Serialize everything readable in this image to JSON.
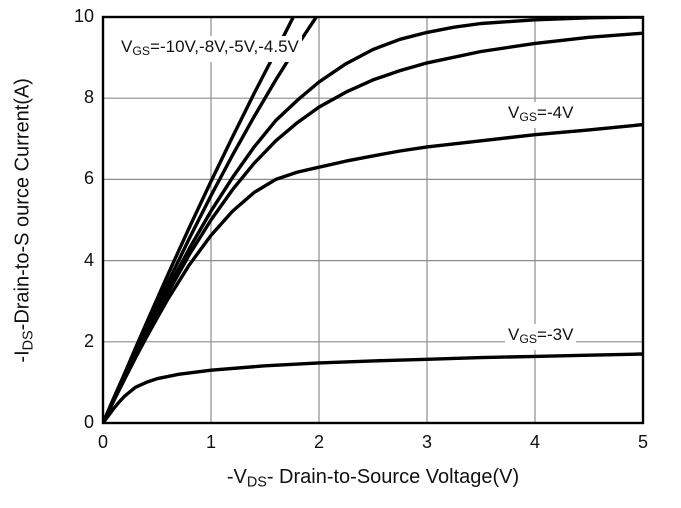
{
  "chart_data": {
    "type": "line",
    "title": "",
    "xlabel": "-VDS- Drain-to-Source Voltage(V)",
    "ylabel": "-IDS-Drain-to-S ource Current(A)",
    "xlim": [
      0,
      5
    ],
    "ylim": [
      0,
      10
    ],
    "x_ticks": [
      0,
      1,
      2,
      3,
      4,
      5
    ],
    "y_ticks": [
      0,
      2,
      4,
      6,
      8,
      10
    ],
    "grid": true,
    "legend": "none",
    "line_color": "#000000",
    "grid_color": "#8c8c8c",
    "series": [
      {
        "name": "VGS=-10V",
        "points": [
          [
            0,
            0
          ],
          [
            0.1,
            0.62
          ],
          [
            0.2,
            1.22
          ],
          [
            0.3,
            1.84
          ],
          [
            0.4,
            2.45
          ],
          [
            0.5,
            3.05
          ],
          [
            0.6,
            3.65
          ],
          [
            0.8,
            4.82
          ],
          [
            1.0,
            5.95
          ],
          [
            1.2,
            7.05
          ],
          [
            1.4,
            8.12
          ],
          [
            1.6,
            9.15
          ],
          [
            1.8,
            10.2
          ],
          [
            1.9,
            10.7
          ]
        ]
      },
      {
        "name": "VGS=-8V",
        "points": [
          [
            0,
            0
          ],
          [
            0.1,
            0.6
          ],
          [
            0.2,
            1.18
          ],
          [
            0.3,
            1.76
          ],
          [
            0.4,
            2.33
          ],
          [
            0.5,
            2.9
          ],
          [
            0.6,
            3.45
          ],
          [
            0.8,
            4.55
          ],
          [
            1.0,
            5.6
          ],
          [
            1.2,
            6.6
          ],
          [
            1.4,
            7.55
          ],
          [
            1.6,
            8.45
          ],
          [
            1.8,
            9.3
          ],
          [
            2.0,
            10.1
          ],
          [
            2.15,
            10.7
          ]
        ]
      },
      {
        "name": "VGS=-5V",
        "points": [
          [
            0,
            0
          ],
          [
            0.1,
            0.58
          ],
          [
            0.2,
            1.14
          ],
          [
            0.3,
            1.7
          ],
          [
            0.4,
            2.24
          ],
          [
            0.5,
            2.78
          ],
          [
            0.6,
            3.3
          ],
          [
            0.8,
            4.3
          ],
          [
            1.0,
            5.22
          ],
          [
            1.2,
            6.05
          ],
          [
            1.4,
            6.8
          ],
          [
            1.6,
            7.45
          ],
          [
            1.8,
            7.95
          ],
          [
            2.0,
            8.4
          ],
          [
            2.25,
            8.85
          ],
          [
            2.5,
            9.2
          ],
          [
            2.75,
            9.45
          ],
          [
            3.0,
            9.62
          ],
          [
            3.25,
            9.75
          ],
          [
            3.5,
            9.84
          ],
          [
            4.0,
            9.93
          ],
          [
            4.5,
            9.98
          ],
          [
            5.0,
            10.0
          ]
        ]
      },
      {
        "name": "VGS=-4.5V",
        "points": [
          [
            0,
            0
          ],
          [
            0.1,
            0.57
          ],
          [
            0.2,
            1.12
          ],
          [
            0.3,
            1.66
          ],
          [
            0.4,
            2.19
          ],
          [
            0.5,
            2.7
          ],
          [
            0.6,
            3.2
          ],
          [
            0.8,
            4.15
          ],
          [
            1.0,
            5.0
          ],
          [
            1.2,
            5.75
          ],
          [
            1.4,
            6.4
          ],
          [
            1.6,
            6.95
          ],
          [
            1.8,
            7.4
          ],
          [
            2.0,
            7.78
          ],
          [
            2.25,
            8.15
          ],
          [
            2.5,
            8.45
          ],
          [
            2.75,
            8.68
          ],
          [
            3.0,
            8.87
          ],
          [
            3.5,
            9.15
          ],
          [
            4.0,
            9.35
          ],
          [
            4.5,
            9.5
          ],
          [
            5.0,
            9.6
          ]
        ]
      },
      {
        "name": "VGS=-4V",
        "points": [
          [
            0,
            0
          ],
          [
            0.1,
            0.55
          ],
          [
            0.2,
            1.08
          ],
          [
            0.3,
            1.6
          ],
          [
            0.4,
            2.1
          ],
          [
            0.5,
            2.58
          ],
          [
            0.6,
            3.05
          ],
          [
            0.8,
            3.9
          ],
          [
            1.0,
            4.62
          ],
          [
            1.2,
            5.22
          ],
          [
            1.4,
            5.68
          ],
          [
            1.6,
            6.0
          ],
          [
            1.8,
            6.18
          ],
          [
            2.0,
            6.3
          ],
          [
            2.25,
            6.45
          ],
          [
            2.5,
            6.58
          ],
          [
            2.75,
            6.7
          ],
          [
            3.0,
            6.8
          ],
          [
            3.5,
            6.95
          ],
          [
            4.0,
            7.1
          ],
          [
            4.5,
            7.22
          ],
          [
            5.0,
            7.35
          ]
        ]
      },
      {
        "name": "VGS=-3V",
        "points": [
          [
            0,
            0
          ],
          [
            0.05,
            0.18
          ],
          [
            0.1,
            0.36
          ],
          [
            0.15,
            0.52
          ],
          [
            0.2,
            0.66
          ],
          [
            0.3,
            0.88
          ],
          [
            0.4,
            1.0
          ],
          [
            0.5,
            1.09
          ],
          [
            0.7,
            1.2
          ],
          [
            1.0,
            1.3
          ],
          [
            1.5,
            1.41
          ],
          [
            2.0,
            1.48
          ],
          [
            2.5,
            1.53
          ],
          [
            3.0,
            1.57
          ],
          [
            3.5,
            1.61
          ],
          [
            4.0,
            1.64
          ],
          [
            4.5,
            1.67
          ],
          [
            5.0,
            1.7
          ]
        ]
      }
    ],
    "annotations": [
      {
        "text": "VGS=-10V,-8V,-5V,-4.5V",
        "x": 0.16,
        "y": 9.2
      },
      {
        "text": "VGS=-4V",
        "x": 3.72,
        "y": 7.6
      },
      {
        "text": "VGS=-3V",
        "x": 3.72,
        "y": 2.1
      }
    ]
  },
  "labels": {
    "y_title": {
      "pre": "-I",
      "sub": "DS",
      "post": "-Drain-to-S ource Current(A)"
    },
    "x_title": {
      "pre": "-V",
      "sub": "DS",
      "post": "- Drain-to-Source Voltage(V)"
    },
    "ann_bundle": {
      "pre": "V",
      "sub": "GS",
      "post": "=-10V,-8V,-5V,-4.5V"
    },
    "ann_m4": {
      "pre": "V",
      "sub": "GS",
      "post": "=-4V"
    },
    "ann_m3": {
      "pre": "V",
      "sub": "GS",
      "post": "=-3V"
    }
  }
}
